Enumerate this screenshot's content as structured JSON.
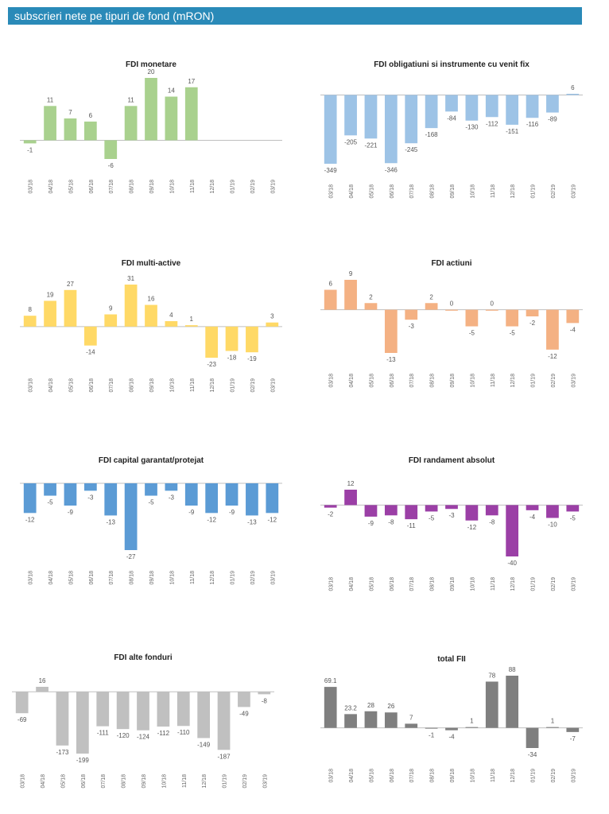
{
  "header": {
    "title": "subscrieri nete pe tipuri de fond (mRON)"
  },
  "chart_data": [
    {
      "type": "bar",
      "title": "FDI monetare",
      "color": "#a9d18e",
      "categories": [
        "03/18",
        "04/18",
        "05/18",
        "06/18",
        "07/18",
        "08/18",
        "09/18",
        "10/18",
        "11/18",
        "12/18",
        "01/19",
        "02/19",
        "03/19"
      ],
      "values": [
        -1,
        11,
        7,
        6,
        -6,
        11,
        20,
        14,
        17,
        null,
        null,
        null,
        null
      ],
      "labels": [
        "-1",
        "11",
        "7",
        "6",
        "-6",
        "11",
        "20",
        "14",
        "17",
        "",
        "",
        "",
        ""
      ]
    },
    {
      "type": "bar",
      "title": "FDI obligatiuni si instrumente cu venit fix",
      "color": "#9dc3e6",
      "categories": [
        "03/18",
        "04/18",
        "05/18",
        "06/18",
        "07/18",
        "08/18",
        "09/18",
        "10/18",
        "11/18",
        "12/18",
        "01/19",
        "02/19",
        "03/19"
      ],
      "values": [
        -349,
        -205,
        -221,
        -346,
        -245,
        -168,
        -84,
        -130,
        -112,
        -151,
        -116,
        -89,
        6
      ],
      "labels": [
        "-349",
        "-205",
        "-221",
        "-346",
        "-245",
        "-168",
        "-84",
        "-130",
        "-112",
        "-151",
        "-116",
        "-89",
        "6"
      ]
    },
    {
      "type": "bar",
      "title": "FDI multi-active",
      "color": "#ffd966",
      "categories": [
        "03/18",
        "04/18",
        "05/18",
        "06/18",
        "07/18",
        "08/18",
        "09/18",
        "10/18",
        "11/18",
        "12/18",
        "01/19",
        "02/19",
        "03/19"
      ],
      "values": [
        8,
        19,
        27,
        -14,
        9,
        31,
        16,
        4,
        1,
        -23,
        -18,
        -19,
        3
      ],
      "labels": [
        "8",
        "19",
        "27",
        "-14",
        "9",
        "31",
        "16",
        "4",
        "1",
        "-23",
        "-18",
        "-19",
        "3"
      ]
    },
    {
      "type": "bar",
      "title": "FDI actiuni",
      "color": "#f4b183",
      "categories": [
        "03/18",
        "04/18",
        "05/18",
        "06/18",
        "07/18",
        "08/18",
        "09/18",
        "10/18",
        "11/18",
        "12/18",
        "01/19",
        "02/19",
        "03/19"
      ],
      "values": [
        6,
        9,
        2,
        -13,
        -3,
        2,
        0,
        -5,
        0,
        -5,
        -2,
        -12,
        -4
      ],
      "labels": [
        "6",
        "9",
        "2",
        "-13",
        "-3",
        "2",
        "0",
        "-5",
        "0",
        "-5",
        "-2",
        "-12",
        "-4"
      ]
    },
    {
      "type": "bar",
      "title": "FDI capital garantat/protejat",
      "color": "#5b9bd5",
      "categories": [
        "03/18",
        "04/18",
        "05/18",
        "06/18",
        "07/18",
        "08/18",
        "09/18",
        "10/18",
        "11/18",
        "12/18",
        "01/19",
        "02/19",
        "03/19"
      ],
      "values": [
        -12,
        -5,
        -9,
        -3,
        -13,
        -27,
        -5,
        -3,
        -9,
        -12,
        -9,
        -13,
        -12
      ],
      "labels": [
        "-12",
        "-5",
        "-9",
        "-3",
        "-13",
        "-27",
        "-5",
        "-3",
        "-9",
        "-12",
        "-9",
        "-13",
        "-12"
      ]
    },
    {
      "type": "bar",
      "title": "FDI randament absolut",
      "color": "#9b3fa6",
      "categories": [
        "03/18",
        "04/18",
        "05/18",
        "06/18",
        "07/18",
        "08/18",
        "09/18",
        "10/18",
        "11/18",
        "12/18",
        "01/19",
        "02/19",
        "03/19"
      ],
      "values": [
        -2,
        12,
        -9,
        -8,
        -11,
        -5,
        -3,
        -12,
        -8,
        -40,
        -4,
        -10,
        -5
      ],
      "labels": [
        "-2",
        "12",
        "-9",
        "-8",
        "-11",
        "-5",
        "-3",
        "-12",
        "-8",
        "-40",
        "-4",
        "-10",
        "-5"
      ]
    },
    {
      "type": "bar",
      "title": "FDI alte fonduri",
      "color": "#c0c0c0",
      "categories": [
        "03/18",
        "04/18",
        "05/18",
        "06/18",
        "07/18",
        "08/18",
        "09/18",
        "10/18",
        "11/18",
        "12/18",
        "01/19",
        "02/19",
        "03/19"
      ],
      "values": [
        -69,
        16,
        -173,
        -199,
        -111,
        -120,
        -124,
        -112,
        -110,
        -149,
        -187,
        -49,
        -8
      ],
      "labels": [
        "-69",
        "16",
        "-173",
        "-199",
        "-111",
        "-120",
        "-124",
        "-112",
        "-110",
        "-149",
        "-187",
        "-49",
        "-8"
      ]
    },
    {
      "type": "bar",
      "title": "total FII",
      "color": "#7f7f7f",
      "categories": [
        "03/18",
        "04/18",
        "05/18",
        "06/18",
        "07/18",
        "08/18",
        "09/18",
        "10/18",
        "11/18",
        "12/18",
        "01/19",
        "02/19",
        "03/19"
      ],
      "values": [
        69.1,
        23.2,
        28,
        26,
        7,
        -1,
        -4,
        1,
        78,
        88,
        -34,
        1,
        -7
      ],
      "labels": [
        "69.1",
        "23.2",
        "28",
        "26",
        "7",
        "-1",
        "-4",
        "1",
        "78",
        "88",
        "-34",
        "1",
        "-7"
      ]
    }
  ]
}
